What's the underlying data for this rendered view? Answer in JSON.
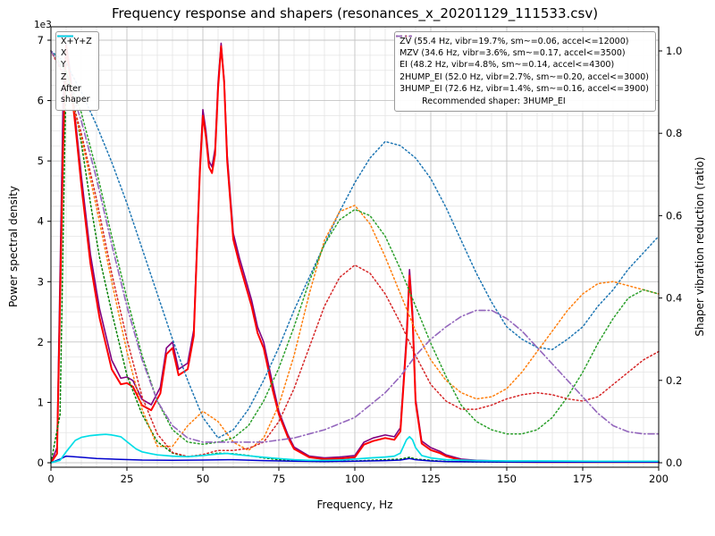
{
  "legend_psd": {
    "entries": [
      {
        "label": "X+Y+Z",
        "color": "#800080",
        "style": "solid"
      },
      {
        "label": "X",
        "color": "#ff0000",
        "style": "solid"
      },
      {
        "label": "Y",
        "color": "#008000",
        "style": "dotted"
      },
      {
        "label": "Z",
        "color": "#0000cd",
        "style": "solid"
      },
      {
        "label": "After\nshaper",
        "color": "#00dde6",
        "style": "solid"
      }
    ]
  },
  "legend_shapers": {
    "entries": [
      {
        "label": "ZV (55.4 Hz, vibr=19.7%, sm~=0.06, accel<=12000)",
        "color": "#1f77b4",
        "style": "dotted"
      },
      {
        "label": "MZV (34.6 Hz, vibr=3.6%, sm~=0.17, accel<=3500)",
        "color": "#ff7f0e",
        "style": "dotted"
      },
      {
        "label": "EI (48.2 Hz, vibr=4.8%, sm~=0.14, accel<=4300)",
        "color": "#2ca02c",
        "style": "dotted"
      },
      {
        "label": "2HUMP_EI (52.0 Hz, vibr=2.7%, sm~=0.20, accel<=3000)",
        "color": "#d62728",
        "style": "dotted"
      },
      {
        "label": "3HUMP_EI (72.6 Hz, vibr=1.4%, sm~=0.16, accel<=3900)",
        "color": "#9467bd",
        "style": "dashdot"
      }
    ],
    "note": "Recommended shaper: 3HUMP_EI"
  },
  "chart_data": {
    "type": "line",
    "title": "Frequency response and shapers (resonances_x_20201129_111533.csv)",
    "axes": {
      "x": {
        "label": "Frequency, Hz",
        "min": 0,
        "max": 200,
        "major_ticks": [
          0,
          25,
          50,
          75,
          100,
          125,
          150,
          175,
          200
        ],
        "tick_labels": [
          "0",
          "25",
          "50",
          "75",
          "100",
          "125",
          "150",
          "175",
          "200"
        ],
        "minor_step": 5
      },
      "y_left": {
        "label": "Power spectral density",
        "offset_text": "1e3",
        "min": 0,
        "max": 7000,
        "unit_scale": 1000,
        "major_ticks": [
          0,
          1000,
          2000,
          3000,
          4000,
          5000,
          6000,
          7000
        ],
        "tick_labels": [
          "0",
          "1",
          "2",
          "3",
          "4",
          "5",
          "6",
          "7"
        ],
        "minor_step": 250
      },
      "y_right": {
        "label": "Shaper vibration reduction (ratio)",
        "min": 0,
        "max": 1.0,
        "major_ticks": [
          0,
          0.2,
          0.4,
          0.6,
          0.8,
          1.0
        ],
        "tick_labels": [
          "0.0",
          "0.2",
          "0.4",
          "0.6",
          "0.8",
          "1.0"
        ],
        "minor_step": 0.05
      }
    },
    "grid": {
      "major_color": "#c4c4c4",
      "minor_color": "#e4e4e4",
      "on": true
    },
    "series": [
      {
        "id": "xyz",
        "label": "X+Y+Z",
        "axis": "left",
        "color": "#800080",
        "style": "solid",
        "width": 1.6,
        "x": [
          0,
          2,
          4,
          5,
          6,
          8,
          10,
          13,
          16,
          20,
          23,
          25,
          27,
          30,
          33,
          36,
          38,
          40,
          42,
          45,
          47,
          49,
          50,
          51,
          52,
          53,
          54,
          55,
          56,
          57,
          58,
          60,
          62,
          64,
          66,
          68,
          70,
          73,
          75,
          78,
          80,
          85,
          90,
          95,
          100,
          103,
          106,
          110,
          113,
          115,
          117,
          118,
          119,
          120,
          122,
          125,
          128,
          130,
          135,
          140,
          150,
          160,
          170,
          180,
          190,
          200
        ],
        "y": [
          0,
          250,
          6000,
          6950,
          6600,
          5700,
          4750,
          3450,
          2550,
          1700,
          1400,
          1420,
          1360,
          1050,
          960,
          1250,
          1900,
          2000,
          1550,
          1650,
          2200,
          4900,
          5850,
          5500,
          5000,
          4900,
          5200,
          6300,
          6950,
          6350,
          5100,
          3800,
          3400,
          3050,
          2700,
          2250,
          2000,
          1300,
          850,
          460,
          260,
          110,
          80,
          95,
          120,
          340,
          410,
          460,
          430,
          580,
          2100,
          3200,
          2500,
          1060,
          360,
          250,
          190,
          130,
          60,
          40,
          25,
          20,
          20,
          20,
          20,
          20
        ]
      },
      {
        "id": "x",
        "label": "X",
        "axis": "left",
        "color": "#ff0000",
        "style": "solid",
        "width": 2.0,
        "x": [
          0,
          2,
          4,
          5,
          6,
          8,
          10,
          13,
          16,
          20,
          23,
          25,
          27,
          30,
          33,
          36,
          38,
          40,
          42,
          45,
          47,
          49,
          50,
          51,
          52,
          53,
          54,
          55,
          56,
          57,
          58,
          60,
          62,
          64,
          66,
          68,
          70,
          73,
          75,
          78,
          80,
          85,
          90,
          95,
          100,
          103,
          106,
          110,
          113,
          115,
          117,
          118,
          119,
          120,
          122,
          125,
          128,
          130,
          135,
          140,
          150,
          160,
          170,
          180,
          190,
          200
        ],
        "y": [
          0,
          150,
          5200,
          6900,
          6500,
          5600,
          4600,
          3300,
          2400,
          1550,
          1300,
          1320,
          1260,
          950,
          870,
          1150,
          1800,
          1900,
          1450,
          1550,
          2100,
          4800,
          5750,
          5400,
          4900,
          4800,
          5100,
          6200,
          6900,
          6300,
          5000,
          3700,
          3300,
          2950,
          2600,
          2150,
          1900,
          1200,
          800,
          420,
          230,
          90,
          60,
          70,
          90,
          300,
          360,
          410,
          380,
          520,
          2000,
          3100,
          2400,
          1000,
          320,
          210,
          160,
          110,
          40,
          25,
          15,
          10,
          10,
          10,
          10,
          10
        ]
      },
      {
        "id": "y",
        "label": "Y",
        "axis": "left",
        "color": "#008000",
        "style": "dotted",
        "width": 1.5,
        "x": [
          0,
          3,
          5,
          7,
          10,
          13,
          16,
          20,
          25,
          30,
          35,
          40,
          45,
          50,
          55,
          60,
          65,
          70,
          75,
          80,
          90,
          100,
          110,
          115,
          118,
          120,
          125,
          130,
          140,
          150,
          160,
          180,
          200
        ],
        "y": [
          0,
          800,
          6500,
          6100,
          5300,
          4300,
          3400,
          2500,
          1450,
          800,
          350,
          160,
          100,
          120,
          160,
          150,
          120,
          80,
          50,
          30,
          20,
          30,
          50,
          60,
          90,
          60,
          40,
          20,
          15,
          10,
          10,
          10,
          10
        ]
      },
      {
        "id": "z",
        "label": "Z",
        "axis": "left",
        "color": "#0000cd",
        "style": "solid",
        "width": 1.5,
        "x": [
          0,
          3,
          5,
          10,
          15,
          20,
          30,
          40,
          50,
          60,
          70,
          80,
          90,
          100,
          110,
          115,
          118,
          120,
          125,
          130,
          140,
          160,
          180,
          200
        ],
        "y": [
          0,
          60,
          110,
          90,
          70,
          60,
          45,
          40,
          45,
          50,
          35,
          25,
          20,
          25,
          35,
          45,
          70,
          50,
          30,
          20,
          15,
          10,
          10,
          10
        ]
      },
      {
        "id": "zv",
        "label": "ZV",
        "axis": "right",
        "color": "#1f77b4",
        "style": "dotted",
        "width": 1.5,
        "x": [
          0,
          5,
          10,
          15,
          20,
          25,
          30,
          35,
          40,
          45,
          50,
          55,
          60,
          65,
          70,
          75,
          80,
          85,
          90,
          95,
          100,
          105,
          110,
          115,
          120,
          125,
          130,
          135,
          140,
          145,
          150,
          155,
          160,
          165,
          170,
          175,
          180,
          185,
          190,
          195,
          200
        ],
        "y": [
          1.0,
          0.97,
          0.9,
          0.82,
          0.73,
          0.63,
          0.52,
          0.41,
          0.3,
          0.2,
          0.11,
          0.06,
          0.08,
          0.13,
          0.2,
          0.28,
          0.37,
          0.45,
          0.53,
          0.61,
          0.68,
          0.74,
          0.78,
          0.77,
          0.74,
          0.69,
          0.62,
          0.54,
          0.46,
          0.39,
          0.33,
          0.3,
          0.28,
          0.275,
          0.3,
          0.33,
          0.38,
          0.42,
          0.47,
          0.51,
          0.55
        ]
      },
      {
        "id": "mzv",
        "label": "MZV",
        "axis": "right",
        "color": "#ff7f0e",
        "style": "dotted",
        "width": 1.5,
        "x": [
          0,
          5,
          10,
          15,
          20,
          25,
          30,
          35,
          40,
          45,
          50,
          55,
          60,
          65,
          70,
          75,
          80,
          85,
          90,
          95,
          100,
          105,
          110,
          115,
          120,
          125,
          130,
          135,
          140,
          145,
          150,
          155,
          160,
          165,
          170,
          175,
          180,
          185,
          190,
          195,
          200
        ],
        "y": [
          1.0,
          0.93,
          0.79,
          0.62,
          0.44,
          0.27,
          0.13,
          0.04,
          0.04,
          0.09,
          0.125,
          0.1,
          0.05,
          0.03,
          0.06,
          0.14,
          0.26,
          0.41,
          0.54,
          0.61,
          0.625,
          0.58,
          0.5,
          0.41,
          0.32,
          0.25,
          0.2,
          0.17,
          0.155,
          0.16,
          0.18,
          0.22,
          0.27,
          0.32,
          0.37,
          0.41,
          0.435,
          0.44,
          0.43,
          0.42,
          0.41
        ]
      },
      {
        "id": "ei",
        "label": "EI",
        "axis": "right",
        "color": "#2ca02c",
        "style": "dotted",
        "width": 1.5,
        "x": [
          0,
          5,
          10,
          15,
          20,
          25,
          30,
          35,
          40,
          45,
          50,
          55,
          60,
          65,
          70,
          75,
          80,
          85,
          90,
          95,
          100,
          105,
          110,
          115,
          120,
          125,
          130,
          135,
          140,
          145,
          150,
          155,
          160,
          165,
          170,
          175,
          180,
          185,
          190,
          195,
          200
        ],
        "y": [
          1.0,
          0.95,
          0.85,
          0.71,
          0.55,
          0.4,
          0.26,
          0.15,
          0.08,
          0.05,
          0.045,
          0.05,
          0.06,
          0.09,
          0.15,
          0.23,
          0.33,
          0.44,
          0.53,
          0.59,
          0.615,
          0.6,
          0.55,
          0.47,
          0.38,
          0.29,
          0.21,
          0.14,
          0.1,
          0.08,
          0.07,
          0.07,
          0.08,
          0.11,
          0.16,
          0.22,
          0.29,
          0.35,
          0.4,
          0.42,
          0.41
        ]
      },
      {
        "id": "2hump_ei",
        "label": "2HUMP_EI",
        "axis": "right",
        "color": "#d62728",
        "style": "dotted",
        "width": 1.5,
        "x": [
          0,
          5,
          10,
          15,
          20,
          25,
          30,
          35,
          40,
          45,
          50,
          55,
          60,
          65,
          70,
          75,
          80,
          85,
          90,
          95,
          100,
          105,
          110,
          115,
          120,
          125,
          130,
          135,
          140,
          145,
          150,
          155,
          160,
          165,
          170,
          175,
          180,
          185,
          190,
          195,
          200
        ],
        "y": [
          1.0,
          0.93,
          0.8,
          0.64,
          0.46,
          0.3,
          0.16,
          0.07,
          0.025,
          0.015,
          0.02,
          0.03,
          0.03,
          0.035,
          0.05,
          0.1,
          0.18,
          0.28,
          0.38,
          0.45,
          0.48,
          0.46,
          0.41,
          0.34,
          0.26,
          0.19,
          0.15,
          0.13,
          0.13,
          0.14,
          0.155,
          0.165,
          0.17,
          0.165,
          0.155,
          0.15,
          0.16,
          0.19,
          0.22,
          0.25,
          0.27
        ]
      },
      {
        "id": "3hump_ei",
        "label": "3HUMP_EI",
        "axis": "right",
        "color": "#9467bd",
        "style": "dashdot",
        "width": 1.6,
        "x": [
          0,
          5,
          10,
          15,
          20,
          25,
          30,
          35,
          40,
          45,
          50,
          55,
          60,
          65,
          70,
          75,
          80,
          85,
          90,
          95,
          100,
          105,
          110,
          115,
          120,
          125,
          130,
          135,
          140,
          145,
          150,
          155,
          160,
          165,
          170,
          175,
          180,
          185,
          190,
          195,
          200
        ],
        "y": [
          1.0,
          0.94,
          0.83,
          0.69,
          0.53,
          0.38,
          0.25,
          0.15,
          0.09,
          0.06,
          0.05,
          0.05,
          0.05,
          0.05,
          0.05,
          0.055,
          0.06,
          0.07,
          0.08,
          0.095,
          0.11,
          0.14,
          0.17,
          0.21,
          0.26,
          0.3,
          0.33,
          0.355,
          0.37,
          0.37,
          0.35,
          0.32,
          0.28,
          0.24,
          0.2,
          0.16,
          0.12,
          0.09,
          0.075,
          0.07,
          0.07
        ]
      },
      {
        "id": "after_shaper",
        "label": "After shaper",
        "axis": "left",
        "color": "#00dde6",
        "style": "solid",
        "width": 1.7,
        "x": [
          0,
          3,
          5,
          8,
          10,
          13,
          16,
          18,
          20,
          23,
          25,
          28,
          30,
          33,
          35,
          40,
          45,
          50,
          55,
          58,
          60,
          65,
          70,
          75,
          80,
          85,
          90,
          95,
          100,
          105,
          110,
          113,
          115,
          117,
          118,
          119,
          120,
          122,
          125,
          130,
          140,
          150,
          160,
          180,
          200
        ],
        "y": [
          0,
          40,
          180,
          370,
          420,
          450,
          465,
          470,
          460,
          430,
          350,
          230,
          180,
          150,
          130,
          110,
          100,
          120,
          145,
          155,
          140,
          115,
          90,
          70,
          50,
          40,
          40,
          45,
          60,
          80,
          95,
          110,
          160,
          380,
          430,
          380,
          250,
          120,
          80,
          50,
          35,
          30,
          30,
          25,
          25
        ]
      }
    ]
  }
}
